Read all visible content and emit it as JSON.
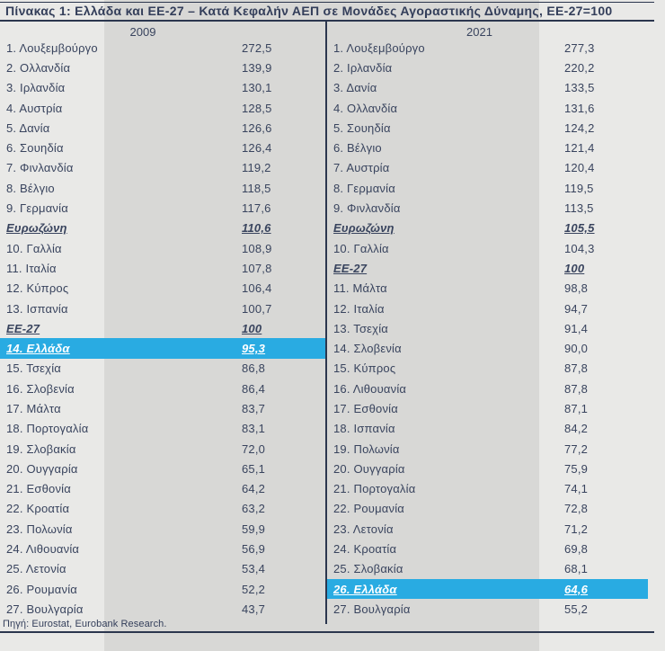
{
  "title": "Πίνακας 1: Ελλάδα και ΕΕ-27 – Κατά Κεφαλήν ΑΕΠ σε Μονάδες Αγοραστικής Δύναμης, ΕΕ-27=100",
  "source": "Πηγή: Eurostat, Eurobank Research.",
  "colors": {
    "highlight": "#29ABE2",
    "text": "#39445E",
    "rule": "#2B364E",
    "background_outer": "#E9E9E7",
    "background_inner": "#D8D8D6",
    "highlight_text": "#FFFFFF"
  },
  "columns": [
    {
      "year": "2009",
      "rows": [
        {
          "label": "1. Λουξεμβούργο",
          "value": "272,5",
          "style": "normal"
        },
        {
          "label": "2. Ολλανδία",
          "value": "139,9",
          "style": "normal"
        },
        {
          "label": "3. Ιρλανδία",
          "value": "130,1",
          "style": "normal"
        },
        {
          "label": "4. Αυστρία",
          "value": "128,5",
          "style": "normal"
        },
        {
          "label": "5. Δανία",
          "value": "126,6",
          "style": "normal"
        },
        {
          "label": "6. Σουηδία",
          "value": "126,4",
          "style": "normal"
        },
        {
          "label": "7. Φινλανδία",
          "value": "119,2",
          "style": "normal"
        },
        {
          "label": "8. Βέλγιο",
          "value": "118,5",
          "style": "normal"
        },
        {
          "label": "9. Γερμανία",
          "value": "117,6",
          "style": "normal"
        },
        {
          "label": "Ευρωζώνη",
          "value": "110,6",
          "style": "aggregate"
        },
        {
          "label": "10. Γαλλία",
          "value": "108,9",
          "style": "normal"
        },
        {
          "label": "11. Ιταλία",
          "value": "107,8",
          "style": "normal"
        },
        {
          "label": "12. Κύπρος",
          "value": "106,4",
          "style": "normal"
        },
        {
          "label": "13. Ισπανία",
          "value": "100,7",
          "style": "normal"
        },
        {
          "label": "ΕΕ-27",
          "value": "100",
          "style": "aggregate"
        },
        {
          "label": "14. Ελλάδα",
          "value": "95,3",
          "style": "highlight"
        },
        {
          "label": "15. Τσεχία",
          "value": "86,8",
          "style": "normal"
        },
        {
          "label": "16. Σλοβενία",
          "value": "86,4",
          "style": "normal"
        },
        {
          "label": "17. Μάλτα",
          "value": "83,7",
          "style": "normal"
        },
        {
          "label": "18. Πορτογαλία",
          "value": "83,1",
          "style": "normal"
        },
        {
          "label": "19. Σλοβακία",
          "value": "72,0",
          "style": "normal"
        },
        {
          "label": "20. Ουγγαρία",
          "value": "65,1",
          "style": "normal"
        },
        {
          "label": "21. Εσθονία",
          "value": "64,2",
          "style": "normal"
        },
        {
          "label": "22. Κροατία",
          "value": "63,2",
          "style": "normal"
        },
        {
          "label": "23. Πολωνία",
          "value": "59,9",
          "style": "normal"
        },
        {
          "label": "24. Λιθουανία",
          "value": "56,9",
          "style": "normal"
        },
        {
          "label": "25. Λετονία",
          "value": "53,4",
          "style": "normal"
        },
        {
          "label": "26. Ρουμανία",
          "value": "52,2",
          "style": "normal"
        },
        {
          "label": "27. Βουλγαρία",
          "value": "43,7",
          "style": "normal"
        }
      ]
    },
    {
      "year": "2021",
      "rows": [
        {
          "label": "1. Λουξεμβούργο",
          "value": "277,3",
          "style": "normal"
        },
        {
          "label": "2. Ιρλανδία",
          "value": "220,2",
          "style": "normal"
        },
        {
          "label": "3. Δανία",
          "value": "133,5",
          "style": "normal"
        },
        {
          "label": "4. Ολλανδία",
          "value": "131,6",
          "style": "normal"
        },
        {
          "label": "5. Σουηδία",
          "value": "124,2",
          "style": "normal"
        },
        {
          "label": "6. Βέλγιο",
          "value": "121,4",
          "style": "normal"
        },
        {
          "label": "7. Αυστρία",
          "value": "120,4",
          "style": "normal"
        },
        {
          "label": "8. Γερμανία",
          "value": "119,5",
          "style": "normal"
        },
        {
          "label": "9. Φινλανδία",
          "value": "113,5",
          "style": "normal"
        },
        {
          "label": "Ευρωζώνη",
          "value": "105,5",
          "style": "aggregate"
        },
        {
          "label": "10. Γαλλία",
          "value": "104,3",
          "style": "normal"
        },
        {
          "label": "ΕΕ-27",
          "value": "100",
          "style": "aggregate"
        },
        {
          "label": "11. Μάλτα",
          "value": "98,8",
          "style": "normal"
        },
        {
          "label": "12. Ιταλία",
          "value": "94,7",
          "style": "normal"
        },
        {
          "label": "13. Τσεχία",
          "value": "91,4",
          "style": "normal"
        },
        {
          "label": "14. Σλοβενία",
          "value": "90,0",
          "style": "normal"
        },
        {
          "label": "15. Κύπρος",
          "value": "87,8",
          "style": "normal"
        },
        {
          "label": "16. Λιθουανία",
          "value": "87,8",
          "style": "normal"
        },
        {
          "label": "17. Εσθονία",
          "value": "87,1",
          "style": "normal"
        },
        {
          "label": "18. Ισπανία",
          "value": "84,2",
          "style": "normal"
        },
        {
          "label": "19. Πολωνία",
          "value": "77,2",
          "style": "normal"
        },
        {
          "label": "20. Ουγγαρία",
          "value": "75,9",
          "style": "normal"
        },
        {
          "label": "21. Πορτογαλία",
          "value": "74,1",
          "style": "normal"
        },
        {
          "label": "22. Ρουμανία",
          "value": "72,8",
          "style": "normal"
        },
        {
          "label": "23. Λετονία",
          "value": "71,2",
          "style": "normal"
        },
        {
          "label": "24. Κροατία",
          "value": "69,8",
          "style": "normal"
        },
        {
          "label": "25. Σλοβακία",
          "value": "68,1",
          "style": "normal"
        },
        {
          "label": "26. Ελλάδα",
          "value": "64,6",
          "style": "highlight"
        },
        {
          "label": "27. Βουλγαρία",
          "value": "55,2",
          "style": "normal"
        }
      ]
    }
  ],
  "chart_data": {
    "type": "table",
    "title": "Πίνακας 1: Ελλάδα και ΕΕ-27 – Κατά Κεφαλήν ΑΕΠ σε Μονάδες Αγοραστικής Δύναμης, ΕΕ-27=100",
    "unit": "ΕΕ-27=100",
    "source": "Πηγή: Eurostat, Eurobank Research.",
    "tables": [
      {
        "year": "2009",
        "rows": [
          [
            "1. Λουξεμβούργο",
            272.5
          ],
          [
            "2. Ολλανδία",
            139.9
          ],
          [
            "3. Ιρλανδία",
            130.1
          ],
          [
            "4. Αυστρία",
            128.5
          ],
          [
            "5. Δανία",
            126.6
          ],
          [
            "6. Σουηδία",
            126.4
          ],
          [
            "7. Φινλανδία",
            119.2
          ],
          [
            "8. Βέλγιο",
            118.5
          ],
          [
            "9. Γερμανία",
            117.6
          ],
          [
            "Ευρωζώνη",
            110.6
          ],
          [
            "10. Γαλλία",
            108.9
          ],
          [
            "11. Ιταλία",
            107.8
          ],
          [
            "12. Κύπρος",
            106.4
          ],
          [
            "13. Ισπανία",
            100.7
          ],
          [
            "ΕΕ-27",
            100
          ],
          [
            "14. Ελλάδα",
            95.3
          ],
          [
            "15. Τσεχία",
            86.8
          ],
          [
            "16. Σλοβενία",
            86.4
          ],
          [
            "17. Μάλτα",
            83.7
          ],
          [
            "18. Πορτογαλία",
            83.1
          ],
          [
            "19. Σλοβακία",
            72.0
          ],
          [
            "20. Ουγγαρία",
            65.1
          ],
          [
            "21. Εσθονία",
            64.2
          ],
          [
            "22. Κροατία",
            63.2
          ],
          [
            "23. Πολωνία",
            59.9
          ],
          [
            "24. Λιθουανία",
            56.9
          ],
          [
            "25. Λετονία",
            53.4
          ],
          [
            "26. Ρουμανία",
            52.2
          ],
          [
            "27. Βουλγαρία",
            43.7
          ]
        ],
        "highlighted_row": "14. Ελλάδα"
      },
      {
        "year": "2021",
        "rows": [
          [
            "1. Λουξεμβούργο",
            277.3
          ],
          [
            "2. Ιρλανδία",
            220.2
          ],
          [
            "3. Δανία",
            133.5
          ],
          [
            "4. Ολλανδία",
            131.6
          ],
          [
            "5. Σουηδία",
            124.2
          ],
          [
            "6. Βέλγιο",
            121.4
          ],
          [
            "7. Αυστρία",
            120.4
          ],
          [
            "8. Γερμανία",
            119.5
          ],
          [
            "9. Φινλανδία",
            113.5
          ],
          [
            "Ευρωζώνη",
            105.5
          ],
          [
            "10. Γαλλία",
            104.3
          ],
          [
            "ΕΕ-27",
            100
          ],
          [
            "11. Μάλτα",
            98.8
          ],
          [
            "12. Ιταλία",
            94.7
          ],
          [
            "13. Τσεχία",
            91.4
          ],
          [
            "14. Σλοβενία",
            90.0
          ],
          [
            "15. Κύπρος",
            87.8
          ],
          [
            "16. Λιθουανία",
            87.8
          ],
          [
            "17. Εσθονία",
            87.1
          ],
          [
            "18. Ισπανία",
            84.2
          ],
          [
            "19. Πολωνία",
            77.2
          ],
          [
            "20. Ουγγαρία",
            75.9
          ],
          [
            "21. Πορτογαλία",
            74.1
          ],
          [
            "22. Ρουμανία",
            72.8
          ],
          [
            "23. Λετονία",
            71.2
          ],
          [
            "24. Κροατία",
            69.8
          ],
          [
            "25. Σλοβακία",
            68.1
          ],
          [
            "26. Ελλάδα",
            64.6
          ],
          [
            "27. Βουλγαρία",
            55.2
          ]
        ],
        "highlighted_row": "26. Ελλάδα"
      }
    ]
  }
}
